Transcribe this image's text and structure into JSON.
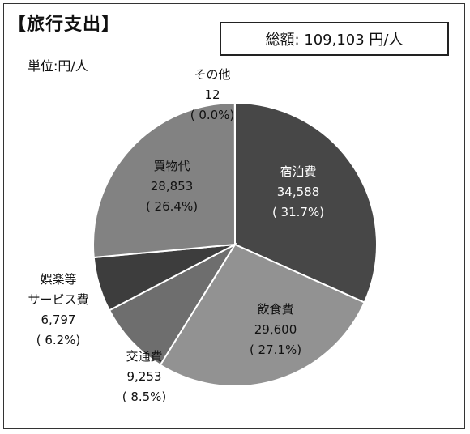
{
  "header": {
    "title": "【旅行支出】",
    "unit": "単位:円/人",
    "total": "総額:  109,103 円/人"
  },
  "chart_data": {
    "type": "pie",
    "title": "【旅行支出】",
    "unit": "円/人",
    "slices": [
      {
        "name": "宿泊費",
        "value": 34588,
        "value_label": "34,588",
        "percent_label": "( 31.7%)",
        "color": "#474747"
      },
      {
        "name": "飲食費",
        "value": 29600,
        "value_label": "29,600",
        "percent_label": "( 27.1%)",
        "color": "#929292"
      },
      {
        "name": "交通費",
        "value": 9253,
        "value_label": "9,253",
        "percent_label": "( 8.5%)",
        "color": "#6e6e6e"
      },
      {
        "name": "娯楽等\nサービス費",
        "value": 6797,
        "value_label": "6,797",
        "percent_label": "( 6.2%)",
        "color": "#3d3d3d"
      },
      {
        "name": "買物代",
        "value": 28853,
        "value_label": "28,853",
        "percent_label": "( 26.4%)",
        "color": "#828282"
      },
      {
        "name": "その他",
        "value": 12,
        "value_label": "12",
        "percent_label": "( 0.0%)",
        "color": "#828282"
      }
    ]
  }
}
